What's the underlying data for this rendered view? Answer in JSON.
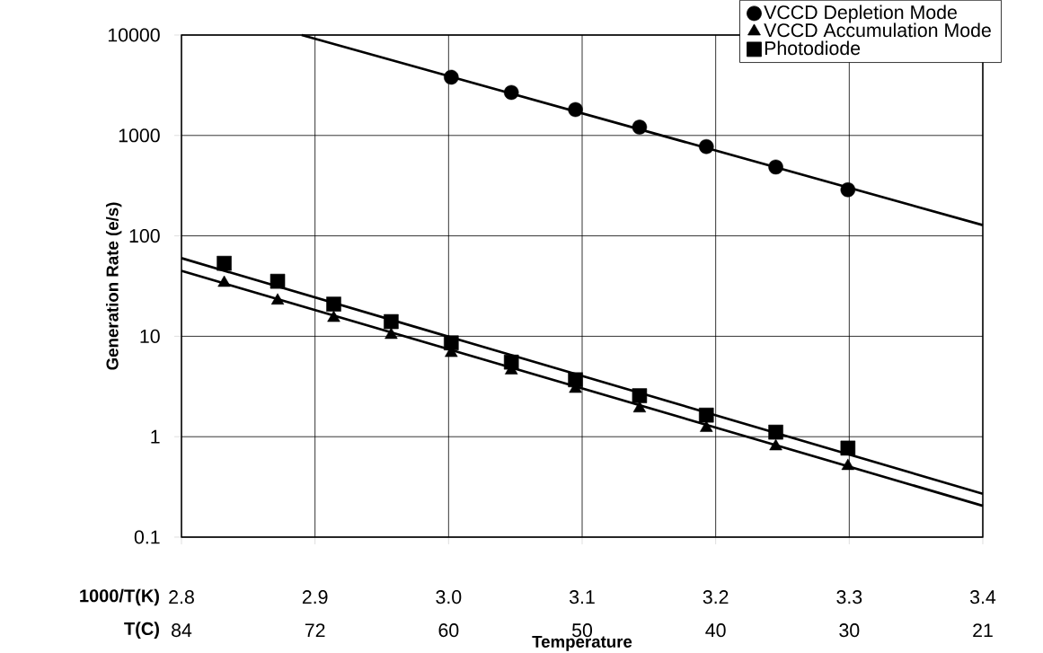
{
  "chart_data": {
    "type": "scatter",
    "xlabel": "Temperature",
    "ylabel": "Generation Rate (e/s)",
    "annotations": [
      "1000/T(K)",
      "T(C)",
      "84",
      "72",
      "60",
      "50",
      "40",
      "30",
      "21"
    ],
    "xlim": [
      2.8,
      3.4
    ],
    "xticks": [
      {
        "value": 2.8,
        "label": "2.8"
      },
      {
        "value": 2.9,
        "label": "2.9"
      },
      {
        "value": 3.0,
        "label": "3.0"
      },
      {
        "value": 3.1,
        "label": "3.1"
      },
      {
        "value": 3.2,
        "label": "3.2"
      },
      {
        "value": 3.3,
        "label": "3.3"
      },
      {
        "value": 3.4,
        "label": "3.4"
      }
    ],
    "ylim": [
      0.1,
      10000
    ],
    "yticks": [
      0.1,
      1,
      10,
      100,
      1000,
      10000
    ],
    "log": "y",
    "grid": true,
    "legend": "top right",
    "series": [
      {
        "name": "VCCD Depletion Mode",
        "type": "scatter",
        "marker": "circle",
        "color": "#000000",
        "x": [
          3.002,
          3.047,
          3.095,
          3.143,
          3.193,
          3.245,
          3.299
        ],
        "values": [
          3800,
          2680,
          1810,
          1210,
          775,
          485,
          288
        ]
      },
      {
        "name": "VCCD Accumulation Mode",
        "type": "scatter",
        "marker": "triangle",
        "color": "#000000",
        "x": [
          2.832,
          2.872,
          2.914,
          2.957,
          3.002,
          3.047,
          3.095,
          3.143,
          3.193,
          3.245,
          3.299
        ],
        "values": [
          34,
          22.6,
          15.2,
          10.3,
          6.8,
          4.56,
          2.99,
          1.91,
          1.22,
          0.8,
          0.51
        ]
      },
      {
        "name": "Photodiode",
        "type": "scatter",
        "marker": "square",
        "color": "#000000",
        "x": [
          2.832,
          2.872,
          2.914,
          2.957,
          3.002,
          3.047,
          3.095,
          3.143,
          3.193,
          3.245,
          3.299
        ],
        "values": [
          53.3,
          35.3,
          20.9,
          14.0,
          8.6,
          5.53,
          3.69,
          2.56,
          1.64,
          1.11,
          0.77
        ]
      },
      {
        "type": "line",
        "marker": "none",
        "color": "#000000",
        "x": [
          2.89,
          3.4
        ],
        "values": [
          10000,
          128
        ]
      },
      {
        "type": "line",
        "marker": "none",
        "color": "#000000",
        "x": [
          2.8,
          3.4
        ],
        "values": [
          44.8,
          0.205
        ]
      },
      {
        "type": "line",
        "marker": "none",
        "color": "#000000",
        "x": [
          2.8,
          3.4
        ],
        "values": [
          60,
          0.27
        ]
      }
    ]
  }
}
